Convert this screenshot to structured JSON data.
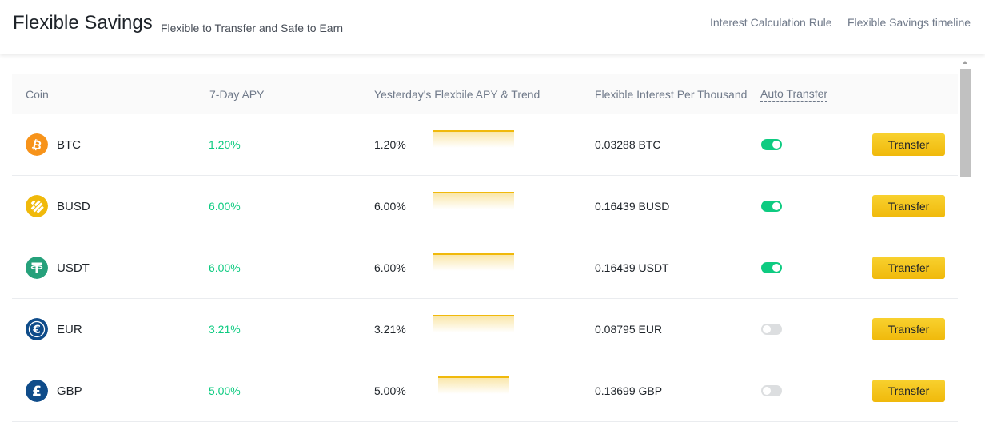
{
  "header": {
    "title": "Flexible Savings",
    "subtitle": "Flexible to Transfer and Safe to Earn",
    "link_interest_rule": "Interest Calculation Rule",
    "link_timeline": "Flexible Savings timeline"
  },
  "table": {
    "columns": {
      "coin": "Coin",
      "apy7": "7-Day APY",
      "yesterday": "Yesterday's Flexbile APY & Trend",
      "interest": "Flexible Interest Per Thousand",
      "auto": "Auto Transfer"
    },
    "rows": [
      {
        "coin": "BTC",
        "apy7": "1.20%",
        "yapy": "1.20%",
        "interest": "0.03288 BTC",
        "auto_transfer": true,
        "button": "Transfer",
        "icon": "bitcoin-icon",
        "icon_color": "#f7931a"
      },
      {
        "coin": "BUSD",
        "apy7": "6.00%",
        "yapy": "6.00%",
        "interest": "0.16439 BUSD",
        "auto_transfer": true,
        "button": "Transfer",
        "icon": "busd-icon",
        "icon_color": "#f0b90b"
      },
      {
        "coin": "USDT",
        "apy7": "6.00%",
        "yapy": "6.00%",
        "interest": "0.16439 USDT",
        "auto_transfer": true,
        "button": "Transfer",
        "icon": "tether-icon",
        "icon_color": "#26a17b"
      },
      {
        "coin": "EUR",
        "apy7": "3.21%",
        "yapy": "3.21%",
        "interest": "0.08795 EUR",
        "auto_transfer": false,
        "button": "Transfer",
        "icon": "euro-icon",
        "icon_color": "#0f4c8a"
      },
      {
        "coin": "GBP",
        "apy7": "5.00%",
        "yapy": "5.00%",
        "interest": "0.13699 GBP",
        "auto_transfer": false,
        "button": "Transfer",
        "icon": "pound-icon",
        "icon_color": "#0f4c8a"
      }
    ]
  },
  "colors": {
    "accent": "#f0b90b",
    "positive": "#0ecb81",
    "toggle_off": "#dcdee0"
  }
}
